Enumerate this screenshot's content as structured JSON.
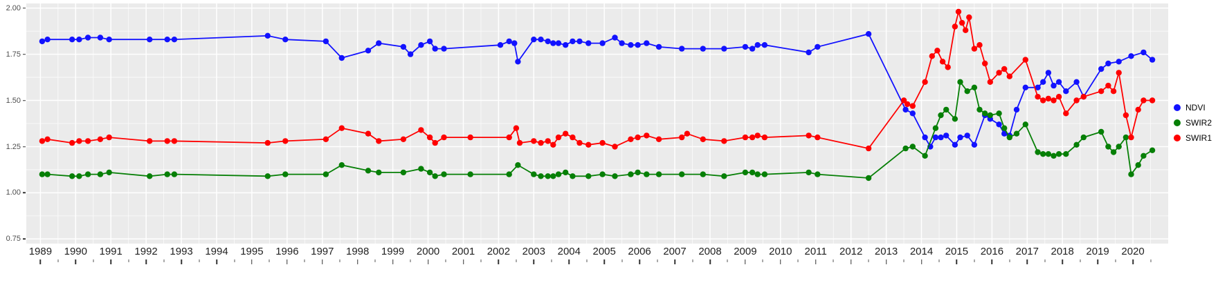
{
  "chart_data": {
    "type": "line",
    "title": "",
    "xlabel": "",
    "ylabel": "",
    "grid": true,
    "legend_position": "right",
    "xlim": [
      1988.6,
      2021.0
    ],
    "ylim": [
      0.75,
      2.0
    ],
    "x_ticks": [
      1989,
      1990,
      1991,
      1992,
      1993,
      1994,
      1995,
      1996,
      1997,
      1998,
      1999,
      2000,
      2001,
      2002,
      2003,
      2004,
      2005,
      2006,
      2007,
      2008,
      2009,
      2010,
      2011,
      2012,
      2013,
      2014,
      2015,
      2016,
      2017,
      2018,
      2019,
      2020
    ],
    "y_ticks": [
      {
        "v": 2.0,
        "label": "2.00"
      },
      {
        "v": 1.75,
        "label": "1.75"
      },
      {
        "v": 1.5,
        "label": "1.50"
      },
      {
        "v": 1.25,
        "label": "1.25"
      },
      {
        "v": 1.0,
        "label": "1.00"
      },
      {
        "v": 0.75,
        "label": "0.75"
      }
    ],
    "series": [
      {
        "name": "NDVI",
        "color": "#1212FF",
        "points": [
          [
            1989.05,
            1.82
          ],
          [
            1989.2,
            1.83
          ],
          [
            1989.9,
            1.83
          ],
          [
            1990.1,
            1.83
          ],
          [
            1990.35,
            1.84
          ],
          [
            1990.7,
            1.84
          ],
          [
            1990.95,
            1.83
          ],
          [
            1992.1,
            1.83
          ],
          [
            1992.6,
            1.83
          ],
          [
            1992.8,
            1.83
          ],
          [
            1995.45,
            1.85
          ],
          [
            1995.95,
            1.83
          ],
          [
            1997.1,
            1.82
          ],
          [
            1997.55,
            1.73
          ],
          [
            1998.3,
            1.77
          ],
          [
            1998.6,
            1.81
          ],
          [
            1999.3,
            1.79
          ],
          [
            1999.5,
            1.75
          ],
          [
            1999.8,
            1.8
          ],
          [
            2000.05,
            1.82
          ],
          [
            2000.2,
            1.78
          ],
          [
            2000.45,
            1.78
          ],
          [
            2002.05,
            1.8
          ],
          [
            2002.3,
            1.82
          ],
          [
            2002.45,
            1.81
          ],
          [
            2002.55,
            1.71
          ],
          [
            2003.0,
            1.83
          ],
          [
            2003.2,
            1.83
          ],
          [
            2003.4,
            1.82
          ],
          [
            2003.55,
            1.81
          ],
          [
            2003.7,
            1.81
          ],
          [
            2003.9,
            1.8
          ],
          [
            2004.1,
            1.82
          ],
          [
            2004.3,
            1.82
          ],
          [
            2004.55,
            1.81
          ],
          [
            2004.95,
            1.81
          ],
          [
            2005.3,
            1.84
          ],
          [
            2005.5,
            1.81
          ],
          [
            2005.75,
            1.8
          ],
          [
            2005.95,
            1.8
          ],
          [
            2006.2,
            1.81
          ],
          [
            2006.55,
            1.79
          ],
          [
            2007.2,
            1.78
          ],
          [
            2007.8,
            1.78
          ],
          [
            2008.4,
            1.78
          ],
          [
            2009.0,
            1.79
          ],
          [
            2009.2,
            1.78
          ],
          [
            2009.35,
            1.8
          ],
          [
            2009.55,
            1.8
          ],
          [
            2010.8,
            1.76
          ],
          [
            2011.05,
            1.79
          ],
          [
            2012.5,
            1.86
          ],
          [
            2013.55,
            1.45
          ],
          [
            2013.75,
            1.43
          ],
          [
            2014.1,
            1.3
          ],
          [
            2014.25,
            1.25
          ],
          [
            2014.4,
            1.3
          ],
          [
            2014.55,
            1.3
          ],
          [
            2014.7,
            1.31
          ],
          [
            2014.95,
            1.26
          ],
          [
            2015.1,
            1.3
          ],
          [
            2015.3,
            1.31
          ],
          [
            2015.5,
            1.26
          ],
          [
            2015.8,
            1.42
          ],
          [
            2015.95,
            1.4
          ],
          [
            2016.2,
            1.37
          ],
          [
            2016.35,
            1.32
          ],
          [
            2016.5,
            1.31
          ],
          [
            2016.7,
            1.45
          ],
          [
            2016.95,
            1.57
          ],
          [
            2017.3,
            1.57
          ],
          [
            2017.45,
            1.6
          ],
          [
            2017.6,
            1.65
          ],
          [
            2017.75,
            1.58
          ],
          [
            2017.9,
            1.6
          ],
          [
            2018.1,
            1.55
          ],
          [
            2018.4,
            1.6
          ],
          [
            2018.6,
            1.52
          ],
          [
            2019.1,
            1.67
          ],
          [
            2019.3,
            1.7
          ],
          [
            2019.6,
            1.71
          ],
          [
            2019.95,
            1.74
          ],
          [
            2020.3,
            1.76
          ],
          [
            2020.55,
            1.72
          ]
        ]
      },
      {
        "name": "SWIR2",
        "color": "#067F06",
        "points": [
          [
            1989.05,
            1.1
          ],
          [
            1989.2,
            1.1
          ],
          [
            1989.9,
            1.09
          ],
          [
            1990.1,
            1.09
          ],
          [
            1990.35,
            1.1
          ],
          [
            1990.7,
            1.1
          ],
          [
            1990.95,
            1.11
          ],
          [
            1992.1,
            1.09
          ],
          [
            1992.6,
            1.1
          ],
          [
            1992.8,
            1.1
          ],
          [
            1995.45,
            1.09
          ],
          [
            1995.95,
            1.1
          ],
          [
            1997.1,
            1.1
          ],
          [
            1997.55,
            1.15
          ],
          [
            1998.3,
            1.12
          ],
          [
            1998.6,
            1.11
          ],
          [
            1999.3,
            1.11
          ],
          [
            1999.8,
            1.13
          ],
          [
            2000.05,
            1.11
          ],
          [
            2000.2,
            1.09
          ],
          [
            2000.45,
            1.1
          ],
          [
            2001.2,
            1.1
          ],
          [
            2002.3,
            1.1
          ],
          [
            2002.55,
            1.15
          ],
          [
            2003.0,
            1.1
          ],
          [
            2003.2,
            1.09
          ],
          [
            2003.4,
            1.09
          ],
          [
            2003.55,
            1.09
          ],
          [
            2003.7,
            1.1
          ],
          [
            2003.9,
            1.11
          ],
          [
            2004.1,
            1.09
          ],
          [
            2004.55,
            1.09
          ],
          [
            2004.95,
            1.1
          ],
          [
            2005.3,
            1.09
          ],
          [
            2005.75,
            1.1
          ],
          [
            2005.95,
            1.11
          ],
          [
            2006.2,
            1.1
          ],
          [
            2006.55,
            1.1
          ],
          [
            2007.2,
            1.1
          ],
          [
            2007.8,
            1.1
          ],
          [
            2008.4,
            1.09
          ],
          [
            2009.0,
            1.11
          ],
          [
            2009.2,
            1.11
          ],
          [
            2009.35,
            1.1
          ],
          [
            2009.55,
            1.1
          ],
          [
            2010.8,
            1.11
          ],
          [
            2011.05,
            1.1
          ],
          [
            2012.5,
            1.08
          ],
          [
            2013.55,
            1.24
          ],
          [
            2013.75,
            1.25
          ],
          [
            2014.1,
            1.2
          ],
          [
            2014.4,
            1.35
          ],
          [
            2014.55,
            1.42
          ],
          [
            2014.7,
            1.45
          ],
          [
            2014.95,
            1.4
          ],
          [
            2015.1,
            1.6
          ],
          [
            2015.3,
            1.55
          ],
          [
            2015.5,
            1.57
          ],
          [
            2015.65,
            1.45
          ],
          [
            2015.8,
            1.43
          ],
          [
            2015.95,
            1.42
          ],
          [
            2016.2,
            1.43
          ],
          [
            2016.35,
            1.35
          ],
          [
            2016.5,
            1.3
          ],
          [
            2016.7,
            1.32
          ],
          [
            2016.95,
            1.37
          ],
          [
            2017.3,
            1.22
          ],
          [
            2017.45,
            1.21
          ],
          [
            2017.6,
            1.21
          ],
          [
            2017.75,
            1.2
          ],
          [
            2017.9,
            1.21
          ],
          [
            2018.1,
            1.21
          ],
          [
            2018.4,
            1.26
          ],
          [
            2018.6,
            1.3
          ],
          [
            2019.1,
            1.33
          ],
          [
            2019.3,
            1.25
          ],
          [
            2019.45,
            1.22
          ],
          [
            2019.6,
            1.25
          ],
          [
            2019.8,
            1.3
          ],
          [
            2019.95,
            1.1
          ],
          [
            2020.15,
            1.15
          ],
          [
            2020.3,
            1.2
          ],
          [
            2020.55,
            1.23
          ]
        ]
      },
      {
        "name": "SWIR1",
        "color": "#FF0000",
        "points": [
          [
            1989.05,
            1.28
          ],
          [
            1989.2,
            1.29
          ],
          [
            1989.9,
            1.27
          ],
          [
            1990.1,
            1.28
          ],
          [
            1990.35,
            1.28
          ],
          [
            1990.7,
            1.29
          ],
          [
            1990.95,
            1.3
          ],
          [
            1992.1,
            1.28
          ],
          [
            1992.6,
            1.28
          ],
          [
            1992.8,
            1.28
          ],
          [
            1995.45,
            1.27
          ],
          [
            1995.95,
            1.28
          ],
          [
            1997.1,
            1.29
          ],
          [
            1997.55,
            1.35
          ],
          [
            1998.3,
            1.32
          ],
          [
            1998.6,
            1.28
          ],
          [
            1999.3,
            1.29
          ],
          [
            1999.8,
            1.34
          ],
          [
            2000.05,
            1.3
          ],
          [
            2000.2,
            1.27
          ],
          [
            2000.45,
            1.3
          ],
          [
            2001.2,
            1.3
          ],
          [
            2002.3,
            1.3
          ],
          [
            2002.5,
            1.35
          ],
          [
            2002.6,
            1.27
          ],
          [
            2003.0,
            1.28
          ],
          [
            2003.2,
            1.27
          ],
          [
            2003.4,
            1.28
          ],
          [
            2003.55,
            1.26
          ],
          [
            2003.7,
            1.3
          ],
          [
            2003.9,
            1.32
          ],
          [
            2004.1,
            1.3
          ],
          [
            2004.3,
            1.27
          ],
          [
            2004.55,
            1.26
          ],
          [
            2004.95,
            1.27
          ],
          [
            2005.3,
            1.25
          ],
          [
            2005.75,
            1.29
          ],
          [
            2005.95,
            1.3
          ],
          [
            2006.2,
            1.31
          ],
          [
            2006.55,
            1.29
          ],
          [
            2007.2,
            1.3
          ],
          [
            2007.35,
            1.32
          ],
          [
            2007.8,
            1.29
          ],
          [
            2008.4,
            1.28
          ],
          [
            2009.0,
            1.3
          ],
          [
            2009.2,
            1.3
          ],
          [
            2009.35,
            1.31
          ],
          [
            2009.55,
            1.3
          ],
          [
            2010.8,
            1.31
          ],
          [
            2011.05,
            1.3
          ],
          [
            2012.5,
            1.24
          ],
          [
            2013.5,
            1.5
          ],
          [
            2013.6,
            1.48
          ],
          [
            2013.75,
            1.47
          ],
          [
            2014.1,
            1.6
          ],
          [
            2014.3,
            1.74
          ],
          [
            2014.45,
            1.77
          ],
          [
            2014.6,
            1.71
          ],
          [
            2014.75,
            1.68
          ],
          [
            2014.95,
            1.9
          ],
          [
            2015.05,
            1.98
          ],
          [
            2015.15,
            1.92
          ],
          [
            2015.25,
            1.88
          ],
          [
            2015.35,
            1.95
          ],
          [
            2015.5,
            1.78
          ],
          [
            2015.65,
            1.8
          ],
          [
            2015.8,
            1.7
          ],
          [
            2015.95,
            1.6
          ],
          [
            2016.2,
            1.65
          ],
          [
            2016.35,
            1.67
          ],
          [
            2016.5,
            1.63
          ],
          [
            2016.95,
            1.72
          ],
          [
            2017.3,
            1.52
          ],
          [
            2017.45,
            1.5
          ],
          [
            2017.6,
            1.51
          ],
          [
            2017.75,
            1.5
          ],
          [
            2017.9,
            1.52
          ],
          [
            2018.1,
            1.43
          ],
          [
            2018.4,
            1.5
          ],
          [
            2018.6,
            1.52
          ],
          [
            2019.1,
            1.55
          ],
          [
            2019.3,
            1.58
          ],
          [
            2019.45,
            1.55
          ],
          [
            2019.6,
            1.65
          ],
          [
            2019.8,
            1.42
          ],
          [
            2019.95,
            1.3
          ],
          [
            2020.15,
            1.45
          ],
          [
            2020.3,
            1.5
          ],
          [
            2020.55,
            1.5
          ]
        ]
      }
    ]
  },
  "style": {
    "panel_bg": "#EBEBEB",
    "grid_major_color": "#FFFFFF",
    "grid_minor_color": "#FFFFFF",
    "axis_text_color": "#4D4D4D",
    "tick_mark_color": "#333333"
  }
}
